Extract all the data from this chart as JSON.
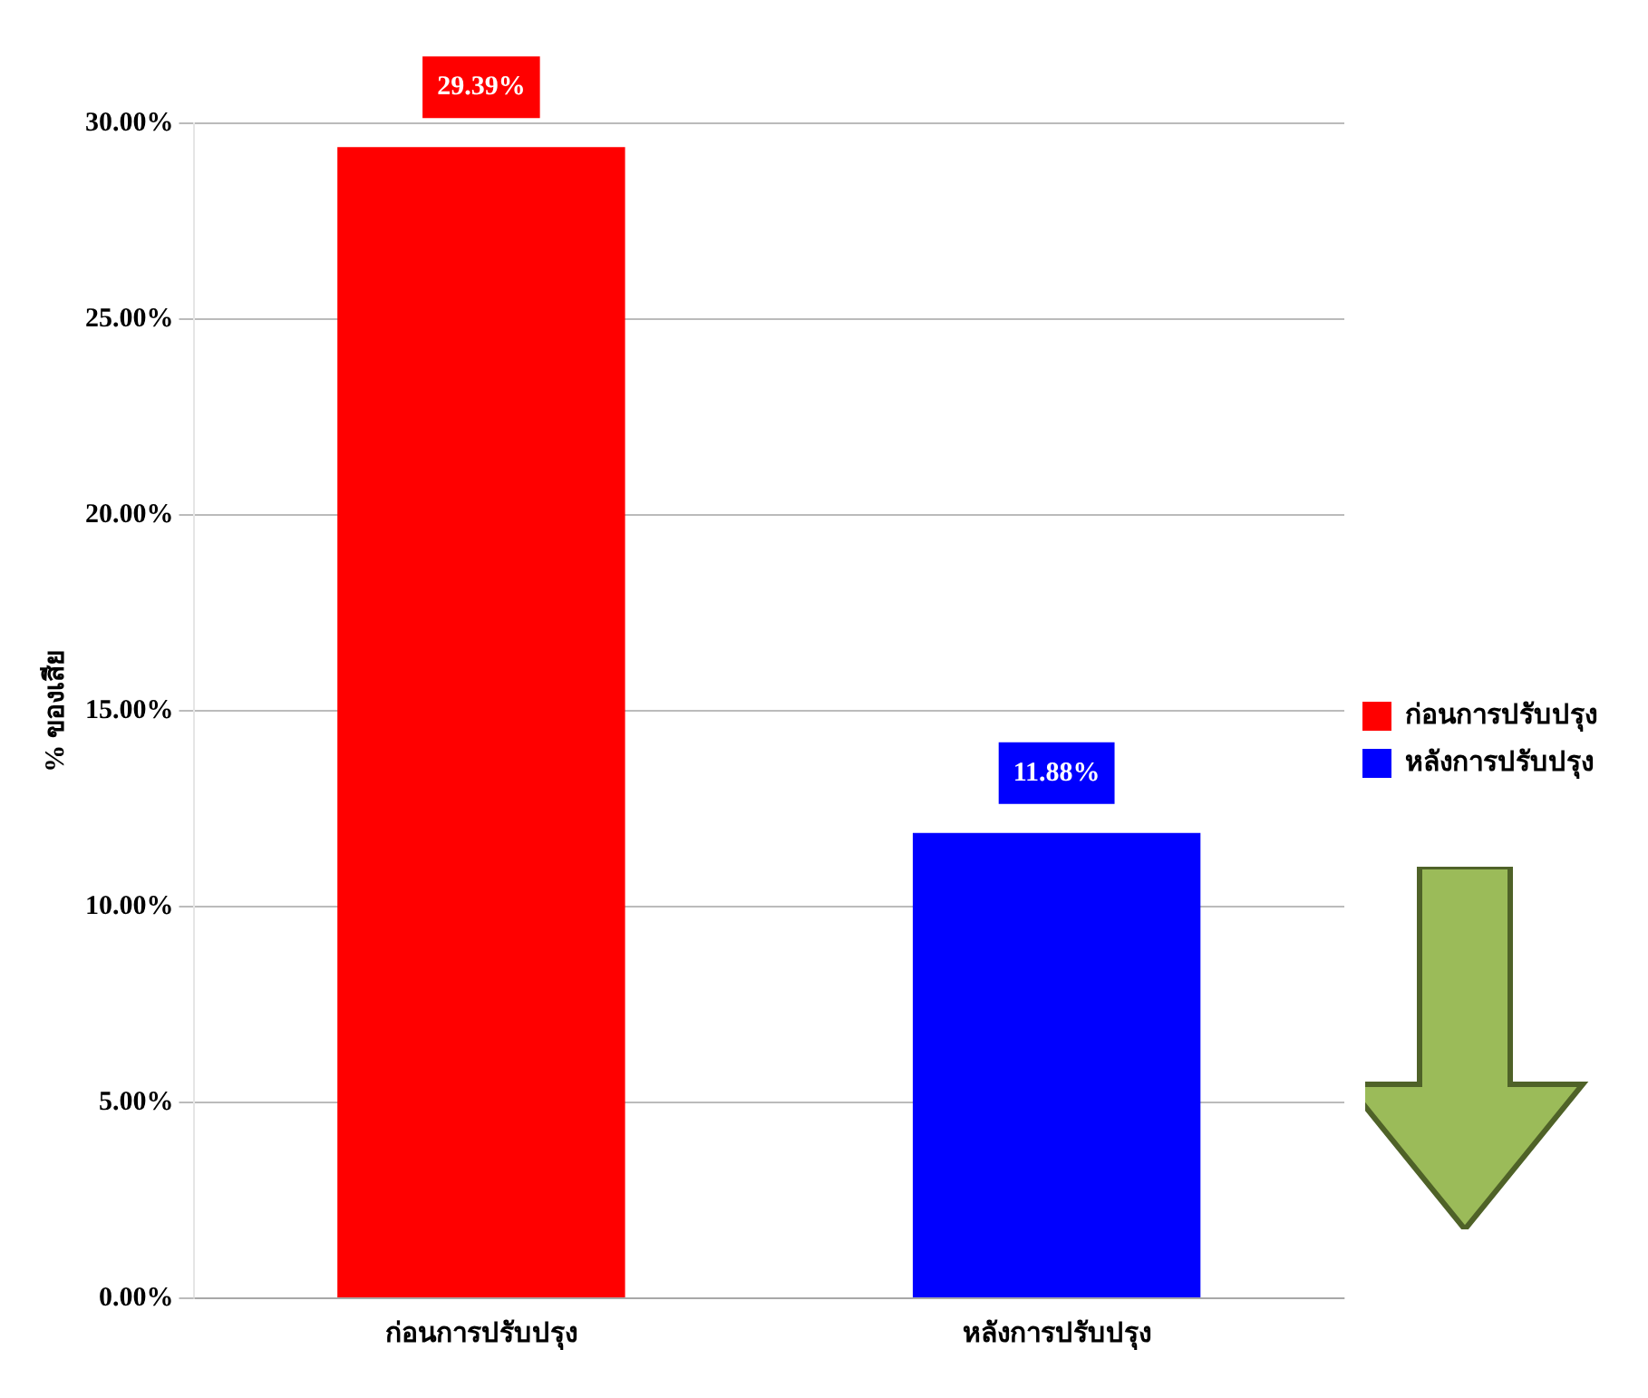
{
  "chart_data": {
    "type": "bar",
    "ylabel": "% ของเสีย",
    "categories": [
      "ก่อนการปรับปรุง",
      "หลังการปรับปรุง"
    ],
    "series": [
      {
        "name": "ก่อนการปรับปรุง",
        "color": "#ff0000",
        "values": [
          29.39,
          null
        ],
        "value_labels": [
          "29.39%",
          null
        ]
      },
      {
        "name": "หลังการปรับปรุง",
        "color": "#0000ff",
        "values": [
          null,
          11.88
        ],
        "value_labels": [
          null,
          "11.88%"
        ]
      }
    ],
    "ylim": [
      0,
      30
    ],
    "yticks": [
      {
        "value": 0,
        "label": "0.00%"
      },
      {
        "value": 5,
        "label": "5.00%"
      },
      {
        "value": 10,
        "label": "10.00%"
      },
      {
        "value": 15,
        "label": "15.00%"
      },
      {
        "value": 20,
        "label": "20.00%"
      },
      {
        "value": 25,
        "label": "25.00%"
      },
      {
        "value": 30,
        "label": "30.00%"
      }
    ],
    "grid": "y",
    "legend": "right"
  }
}
